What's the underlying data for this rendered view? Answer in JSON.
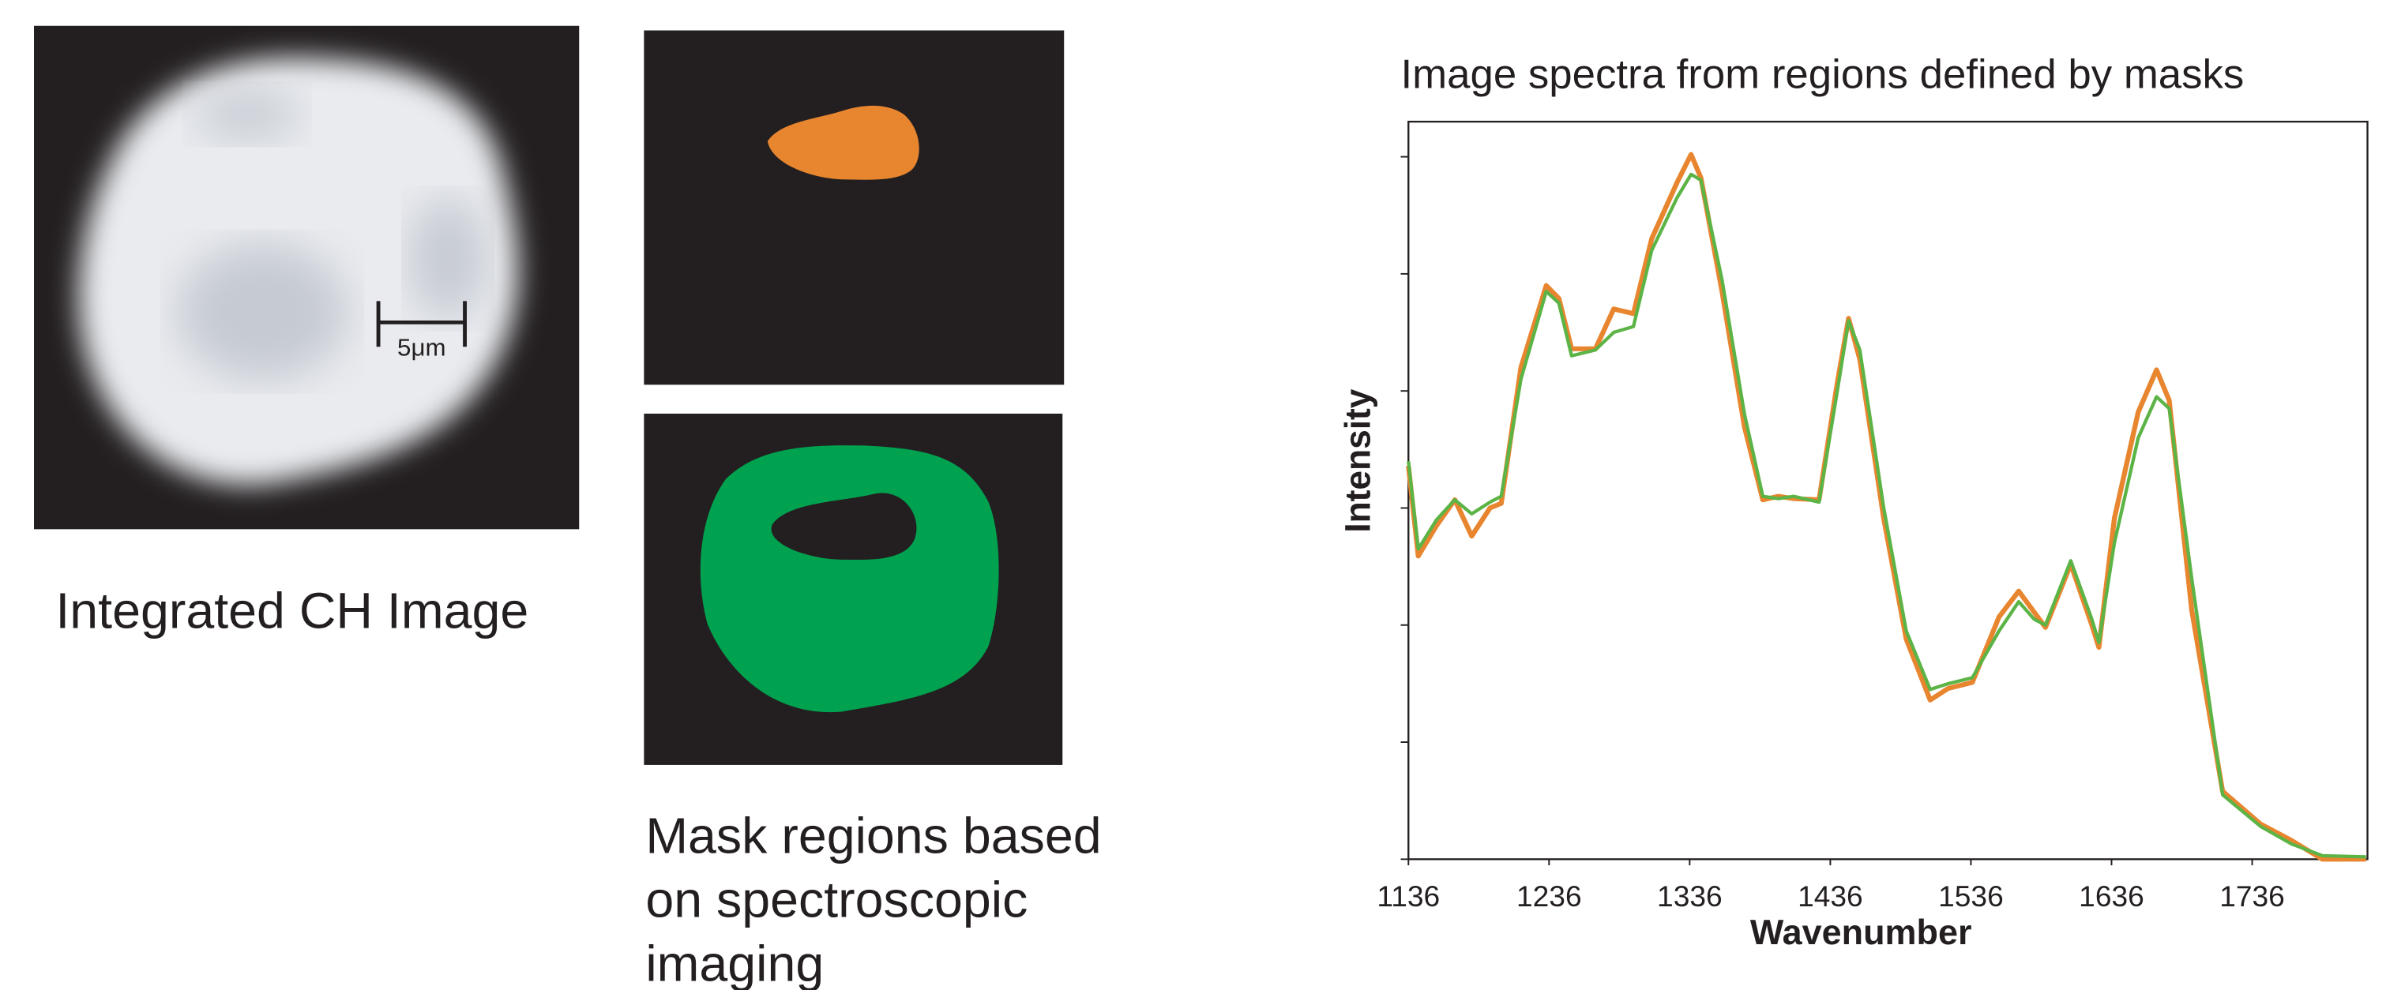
{
  "figure": {
    "image_label": "Integrated CH Image",
    "scale_bar": "5μm",
    "mask_label": [
      "Mask regions based",
      "on spectroscopic",
      "imaging"
    ]
  },
  "chart_data": {
    "type": "line",
    "title": "Image spectra from regions defined by masks",
    "x_label": "Wavenumber",
    "y_label": "Intensity",
    "x": [
      1136,
      1143,
      1156,
      1169,
      1181,
      1194,
      1202,
      1216,
      1234,
      1243,
      1252,
      1269,
      1282,
      1296,
      1309,
      1327,
      1337,
      1344,
      1359,
      1375,
      1388,
      1399,
      1410,
      1428,
      1441,
      1449,
      1457,
      1474,
      1490,
      1507,
      1520,
      1537,
      1556,
      1570,
      1581,
      1589,
      1607,
      1622,
      1627,
      1638,
      1655,
      1668,
      1677,
      1693,
      1715,
      1742,
      1764,
      1786,
      1817
    ],
    "series": [
      {
        "color": "#e8852f",
        "values": [
          3.36,
          2.59,
          2.85,
          3.07,
          2.76,
          3.0,
          3.04,
          4.2,
          4.9,
          4.79,
          4.36,
          4.36,
          4.7,
          4.66,
          5.3,
          5.78,
          6.02,
          5.82,
          4.85,
          3.69,
          3.07,
          3.1,
          3.08,
          3.07,
          4.07,
          4.62,
          4.27,
          2.91,
          1.88,
          1.36,
          1.46,
          1.51,
          2.07,
          2.29,
          2.11,
          1.98,
          2.52,
          2.0,
          1.81,
          2.91,
          3.82,
          4.18,
          3.92,
          2.13,
          0.58,
          0.3,
          0.16,
          0,
          0
        ]
      },
      {
        "color": "#5cb446",
        "values": [
          3.4,
          2.65,
          2.9,
          3.07,
          2.95,
          3.05,
          3.1,
          4.1,
          4.85,
          4.75,
          4.3,
          4.35,
          4.5,
          4.55,
          5.2,
          5.65,
          5.85,
          5.8,
          4.95,
          3.8,
          3.1,
          3.08,
          3.1,
          3.05,
          4.0,
          4.6,
          4.35,
          3.0,
          1.95,
          1.45,
          1.5,
          1.55,
          1.95,
          2.2,
          2.05,
          2.0,
          2.55,
          2.05,
          1.85,
          2.7,
          3.6,
          3.95,
          3.85,
          2.4,
          0.55,
          0.28,
          0.13,
          0.03,
          0.02
        ]
      }
    ],
    "xlim": [
      1136,
      1818
    ],
    "xticks": [
      1136,
      1236,
      1336,
      1436,
      1536,
      1636,
      1736
    ],
    "ylim": [
      0,
      6.3
    ],
    "yticks": [
      0,
      1,
      2,
      3,
      4,
      5,
      6
    ]
  }
}
